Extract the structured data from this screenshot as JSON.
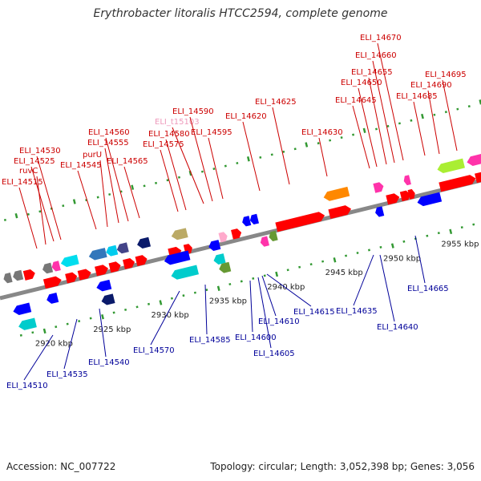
{
  "title": "Erythrobacter litoralis HTCC2594, complete genome",
  "footer": {
    "accession": "Accession: NC_007722",
    "summary": "Topology: circular; Length: 3,052,398 bp; Genes: 3,056"
  },
  "colors": {
    "forward_label": "#cc0000",
    "reverse_label": "#000099",
    "rna_label": "#ee99bb",
    "tick": "#339933",
    "backbone": "#888888"
  },
  "ticks": {
    "start_kbp": 2920,
    "end_kbp": 2955,
    "major_step_kbp": 5,
    "minor_step_kbp": 1,
    "labels": [
      "2920 kbp",
      "2925 kbp",
      "2930 kbp",
      "2935 kbp",
      "2940 kbp",
      "2945 kbp",
      "2950 kbp",
      "2955 kbp"
    ]
  },
  "forward_labels": [
    "ELI_14515",
    "ruvC",
    "ELI_14525",
    "ELI_14530",
    "ELI_14545",
    "purU",
    "ELI_14555",
    "ELI_14560",
    "ELI_14565",
    "ELI_14575",
    "ELI_14580",
    "ELI_t15103",
    "ELI_14590",
    "ELI_14595",
    "ELI_14620",
    "ELI_14625",
    "ELI_14630",
    "ELI_14645",
    "ELI_14650",
    "ELI_14655",
    "ELI_14660",
    "ELI_14670",
    "ELI_14685",
    "ELI_14690",
    "ELI_14695"
  ],
  "reverse_labels": [
    "ELI_14510",
    "ELI_14535",
    "ELI_14540",
    "ELI_14570",
    "ELI_14585",
    "ELI_14600",
    "ELI_14605",
    "ELI_14610",
    "ELI_14615",
    "ELI_14635",
    "ELI_14640",
    "ELI_14665"
  ]
}
